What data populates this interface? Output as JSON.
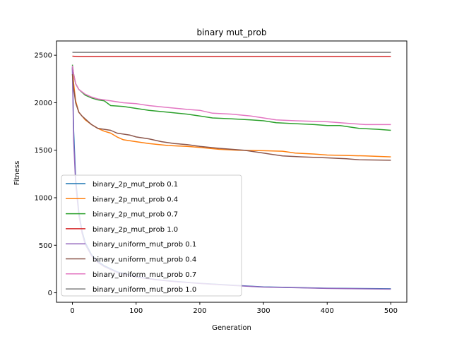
{
  "chart_data": {
    "type": "line",
    "title": "binary mut_prob",
    "xlabel": "Generation",
    "ylabel": "Fitness",
    "xlim": [
      -25,
      525
    ],
    "ylim": [
      -100,
      2650
    ],
    "xticks": [
      0,
      100,
      200,
      300,
      400,
      500
    ],
    "yticks": [
      0,
      500,
      1000,
      1500,
      2000,
      2500
    ],
    "xtick_labels": [
      "0",
      "100",
      "200",
      "300",
      "400",
      "500"
    ],
    "ytick_labels": [
      "0",
      "500",
      "1000",
      "1500",
      "2000",
      "2500"
    ],
    "legend_position": "lower-left",
    "grid": false,
    "series": [
      {
        "name": "binary_2p_mut_prob 0.1",
        "color": "#1f77b4",
        "points": [
          [
            0,
            2380
          ],
          [
            2,
            1700
          ],
          [
            5,
            1200
          ],
          [
            10,
            850
          ],
          [
            15,
            650
          ],
          [
            20,
            530
          ],
          [
            30,
            400
          ],
          [
            40,
            330
          ],
          [
            50,
            285
          ],
          [
            70,
            220
          ],
          [
            100,
            170
          ],
          [
            130,
            140
          ],
          [
            160,
            120
          ],
          [
            200,
            100
          ],
          [
            250,
            80
          ],
          [
            300,
            62
          ],
          [
            350,
            55
          ],
          [
            400,
            48
          ],
          [
            450,
            45
          ],
          [
            500,
            42
          ]
        ]
      },
      {
        "name": "binary_2p_mut_prob 0.4",
        "color": "#ff7f0e",
        "points": [
          [
            0,
            2360
          ],
          [
            2,
            2200
          ],
          [
            5,
            2020
          ],
          [
            10,
            1900
          ],
          [
            15,
            1860
          ],
          [
            20,
            1820
          ],
          [
            30,
            1770
          ],
          [
            40,
            1730
          ],
          [
            50,
            1700
          ],
          [
            60,
            1680
          ],
          [
            70,
            1640
          ],
          [
            80,
            1610
          ],
          [
            100,
            1590
          ],
          [
            120,
            1570
          ],
          [
            150,
            1550
          ],
          [
            180,
            1540
          ],
          [
            200,
            1530
          ],
          [
            230,
            1510
          ],
          [
            260,
            1500
          ],
          [
            300,
            1495
          ],
          [
            330,
            1490
          ],
          [
            350,
            1470
          ],
          [
            380,
            1460
          ],
          [
            400,
            1450
          ],
          [
            430,
            1445
          ],
          [
            460,
            1440
          ],
          [
            500,
            1430
          ]
        ]
      },
      {
        "name": "binary_2p_mut_prob 0.7",
        "color": "#2ca02c",
        "points": [
          [
            0,
            2400
          ],
          [
            2,
            2300
          ],
          [
            5,
            2200
          ],
          [
            10,
            2140
          ],
          [
            20,
            2080
          ],
          [
            30,
            2050
          ],
          [
            40,
            2030
          ],
          [
            50,
            2020
          ],
          [
            60,
            1970
          ],
          [
            80,
            1960
          ],
          [
            100,
            1940
          ],
          [
            120,
            1920
          ],
          [
            150,
            1900
          ],
          [
            180,
            1880
          ],
          [
            200,
            1860
          ],
          [
            220,
            1840
          ],
          [
            250,
            1830
          ],
          [
            280,
            1820
          ],
          [
            300,
            1810
          ],
          [
            320,
            1790
          ],
          [
            350,
            1780
          ],
          [
            380,
            1770
          ],
          [
            400,
            1760
          ],
          [
            420,
            1760
          ],
          [
            450,
            1730
          ],
          [
            480,
            1720
          ],
          [
            500,
            1710
          ]
        ]
      },
      {
        "name": "binary_2p_mut_prob 1.0",
        "color": "#d62728",
        "points": [
          [
            0,
            2490
          ],
          [
            10,
            2485
          ],
          [
            50,
            2485
          ],
          [
            100,
            2485
          ],
          [
            200,
            2485
          ],
          [
            300,
            2485
          ],
          [
            400,
            2485
          ],
          [
            500,
            2485
          ]
        ]
      },
      {
        "name": "binary_uniform_mut_prob 0.1",
        "color": "#9467bd",
        "points": [
          [
            0,
            2370
          ],
          [
            2,
            1600
          ],
          [
            5,
            1150
          ],
          [
            10,
            820
          ],
          [
            15,
            630
          ],
          [
            20,
            510
          ],
          [
            30,
            390
          ],
          [
            40,
            320
          ],
          [
            50,
            275
          ],
          [
            70,
            215
          ],
          [
            100,
            165
          ],
          [
            130,
            138
          ],
          [
            160,
            118
          ],
          [
            200,
            98
          ],
          [
            250,
            78
          ],
          [
            300,
            60
          ],
          [
            350,
            53
          ],
          [
            400,
            46
          ],
          [
            450,
            42
          ],
          [
            500,
            38
          ]
        ]
      },
      {
        "name": "binary_uniform_mut_prob 0.4",
        "color": "#8c564b",
        "points": [
          [
            0,
            2300
          ],
          [
            2,
            2150
          ],
          [
            5,
            2000
          ],
          [
            10,
            1900
          ],
          [
            15,
            1860
          ],
          [
            20,
            1830
          ],
          [
            30,
            1770
          ],
          [
            40,
            1730
          ],
          [
            50,
            1720
          ],
          [
            60,
            1710
          ],
          [
            70,
            1680
          ],
          [
            80,
            1670
          ],
          [
            90,
            1660
          ],
          [
            100,
            1640
          ],
          [
            120,
            1620
          ],
          [
            140,
            1590
          ],
          [
            160,
            1570
          ],
          [
            180,
            1560
          ],
          [
            200,
            1540
          ],
          [
            230,
            1520
          ],
          [
            250,
            1510
          ],
          [
            270,
            1500
          ],
          [
            300,
            1470
          ],
          [
            330,
            1440
          ],
          [
            360,
            1430
          ],
          [
            400,
            1420
          ],
          [
            430,
            1410
          ],
          [
            450,
            1400
          ],
          [
            500,
            1395
          ]
        ]
      },
      {
        "name": "binary_uniform_mut_prob 0.7",
        "color": "#e377c2",
        "points": [
          [
            0,
            2390
          ],
          [
            2,
            2300
          ],
          [
            5,
            2200
          ],
          [
            10,
            2140
          ],
          [
            20,
            2090
          ],
          [
            30,
            2060
          ],
          [
            40,
            2040
          ],
          [
            50,
            2030
          ],
          [
            60,
            2020
          ],
          [
            80,
            2000
          ],
          [
            100,
            1990
          ],
          [
            120,
            1970
          ],
          [
            150,
            1950
          ],
          [
            180,
            1930
          ],
          [
            200,
            1920
          ],
          [
            220,
            1890
          ],
          [
            250,
            1880
          ],
          [
            280,
            1860
          ],
          [
            300,
            1840
          ],
          [
            320,
            1820
          ],
          [
            350,
            1810
          ],
          [
            400,
            1800
          ],
          [
            420,
            1790
          ],
          [
            440,
            1780
          ],
          [
            460,
            1770
          ],
          [
            500,
            1770
          ]
        ]
      },
      {
        "name": "binary_uniform_mut_prob 1.0",
        "color": "#7f7f7f",
        "points": [
          [
            0,
            2530
          ],
          [
            10,
            2530
          ],
          [
            100,
            2530
          ],
          [
            200,
            2530
          ],
          [
            300,
            2530
          ],
          [
            400,
            2530
          ],
          [
            500,
            2530
          ]
        ]
      }
    ]
  }
}
